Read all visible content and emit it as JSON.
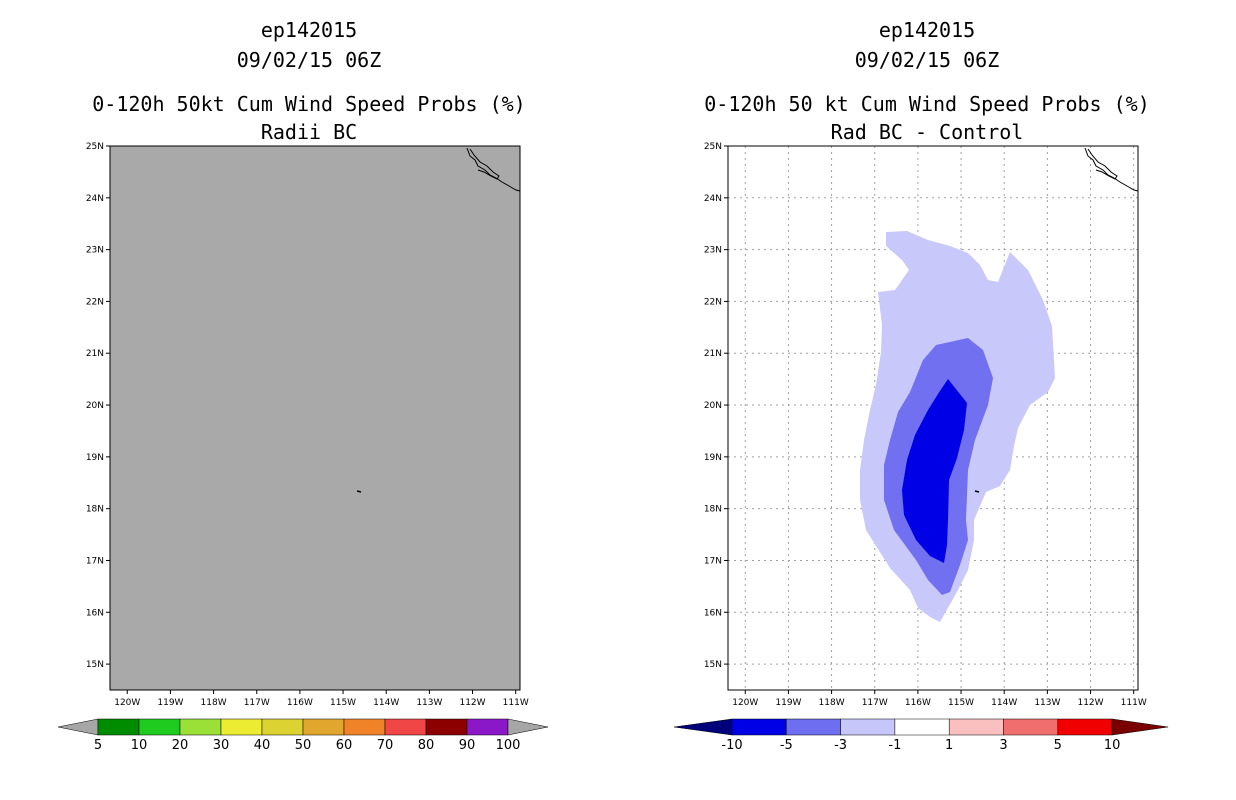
{
  "left": {
    "storm_id": "ep142015",
    "datetime": "09/02/15 06Z",
    "product": "0-120h 50kt Cum Wind Speed Probs (%)",
    "subtitle": "Radii BC",
    "map_fill_color": "#a9a9a9",
    "colorbar": {
      "labels": [
        "5",
        "10",
        "20",
        "30",
        "40",
        "50",
        "60",
        "70",
        "80",
        "90",
        "100"
      ],
      "colors": [
        "#008c00",
        "#1ecb1e",
        "#9ae037",
        "#ecec33",
        "#dcd232",
        "#e1a62d",
        "#f08228",
        "#f04646",
        "#8c0000",
        "#8a18c8"
      ],
      "end_color": "#a6a6a6"
    }
  },
  "right": {
    "storm_id": "ep142015",
    "datetime": "09/02/15 06Z",
    "product": "0-120h 50 kt Cum Wind Speed Probs (%)",
    "subtitle": "Rad BC - Control",
    "colorbar": {
      "labels": [
        "-10",
        "-5",
        "-3",
        "-1",
        "1",
        "3",
        "5",
        "10"
      ],
      "colors": [
        "#0000e6",
        "#6e6ef0",
        "#c6c6fa",
        "#ffffff",
        "#fac0c0",
        "#f06e6e",
        "#f00000"
      ],
      "left_end_color": "#00007a",
      "right_end_color": "#7a0000"
    },
    "contour_colors": [
      "#c8c8fa",
      "#7070f0",
      "#0000e6"
    ]
  },
  "axes": {
    "lat_labels": [
      "25N",
      "24N",
      "23N",
      "22N",
      "21N",
      "20N",
      "19N",
      "18N",
      "17N",
      "16N",
      "15N"
    ],
    "lon_labels": [
      "120W",
      "119W",
      "118W",
      "117W",
      "116W",
      "115W",
      "114W",
      "113W",
      "112W",
      "111W"
    ]
  }
}
